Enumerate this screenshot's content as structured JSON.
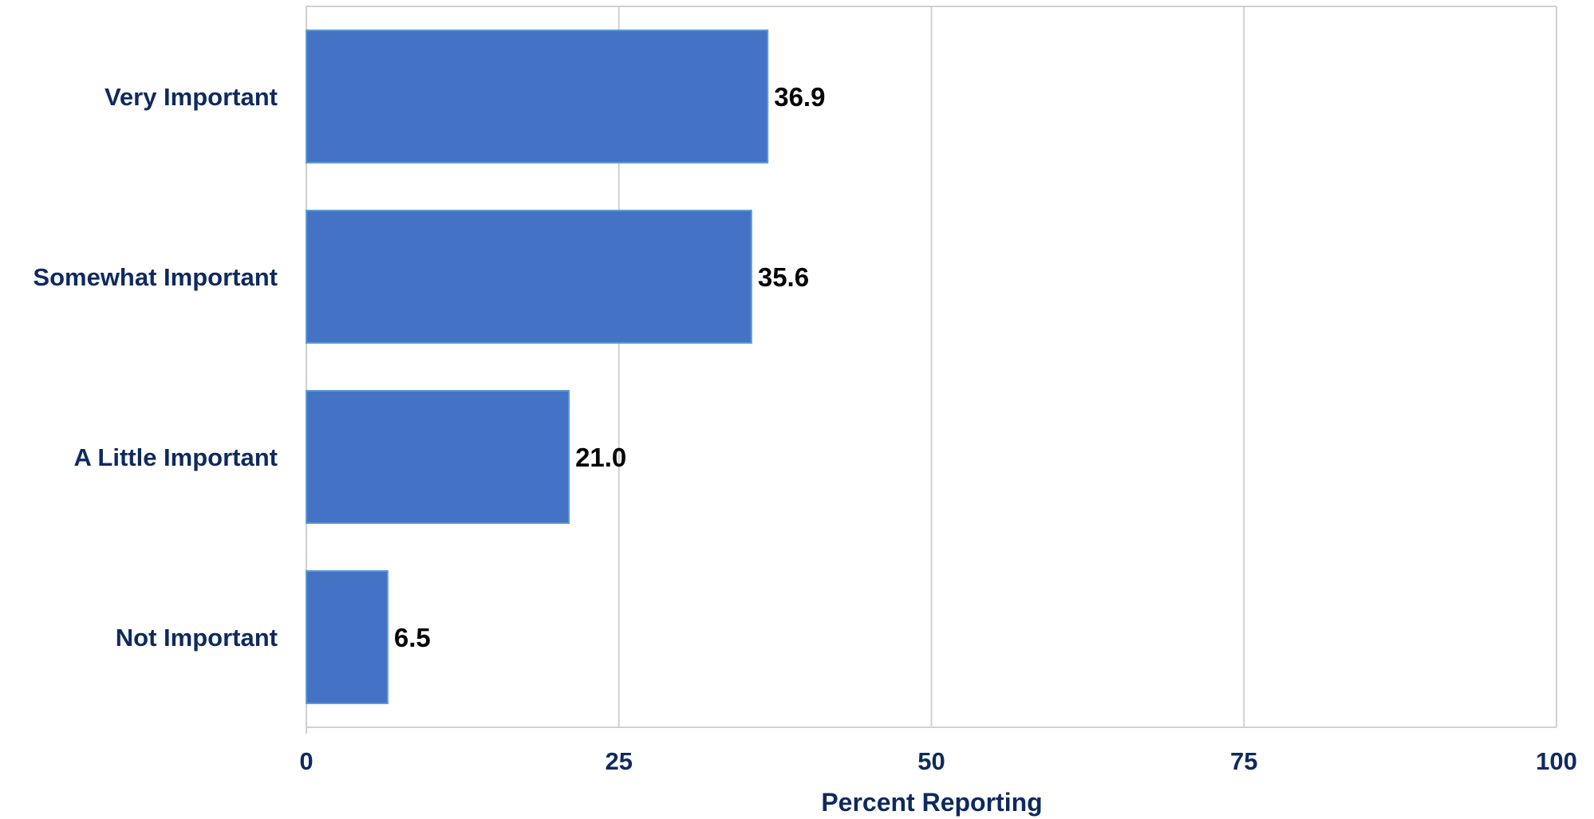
{
  "chart_data": {
    "type": "bar",
    "orientation": "horizontal",
    "categories": [
      "Very Important",
      "Somewhat Important",
      "A Little Important",
      "Not Important"
    ],
    "values": [
      36.9,
      35.6,
      21.0,
      6.5
    ],
    "data_labels": [
      "36.9",
      "35.6",
      "21.0",
      "6.5"
    ],
    "title": "",
    "xlabel": "Percent Reporting",
    "ylabel": "",
    "xlim": [
      0,
      100
    ],
    "xticks": [
      0,
      25,
      50,
      75,
      100
    ],
    "xtick_labels": [
      "0",
      "25",
      "50",
      "75",
      "100"
    ],
    "grid": "vertical",
    "legend": "none"
  },
  "colors": {
    "bar_fill": "#4472C4",
    "bar_stroke": "#5B9BD5",
    "label_text": "#0E2A5E",
    "gridline": "#D0D0D0"
  }
}
